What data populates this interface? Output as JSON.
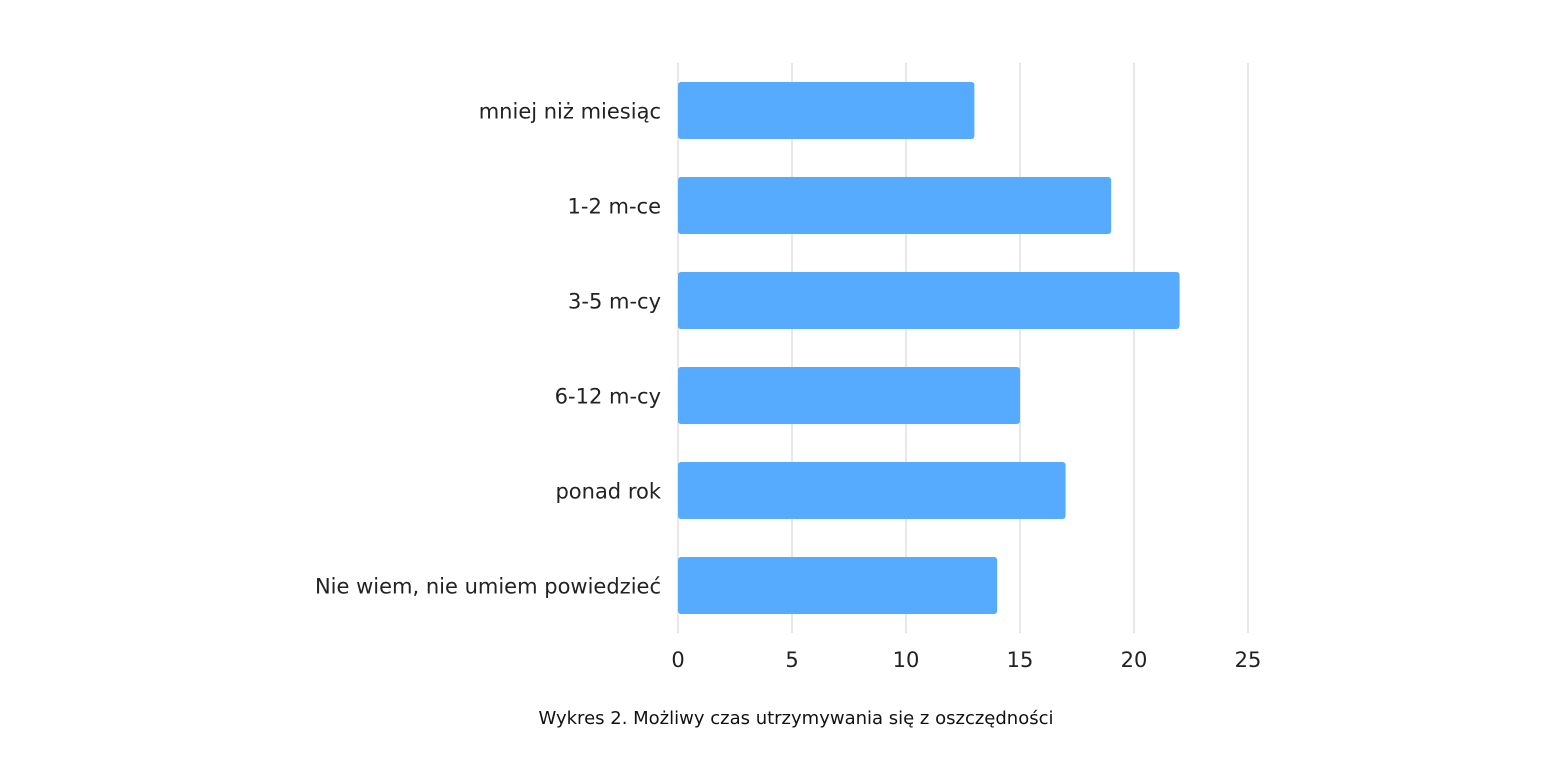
{
  "chart_data": {
    "type": "bar",
    "orientation": "horizontal",
    "categories": [
      "mniej niż miesiąc",
      "1-2 m-ce",
      "3-5 m-cy",
      "6-12 m-cy",
      "ponad rok",
      "Nie wiem, nie umiem powiedzieć"
    ],
    "values": [
      13,
      19,
      22,
      15,
      17,
      14
    ],
    "xlim": [
      0,
      25
    ],
    "xticks": [
      "0",
      "5",
      "10",
      "15",
      "20",
      "25"
    ],
    "grid": true,
    "bar_color": "#56abff",
    "grid_color": "#d8d8d8",
    "caption": "Wykres 2. Możliwy czas utrzymywania się z oszczędności"
  }
}
